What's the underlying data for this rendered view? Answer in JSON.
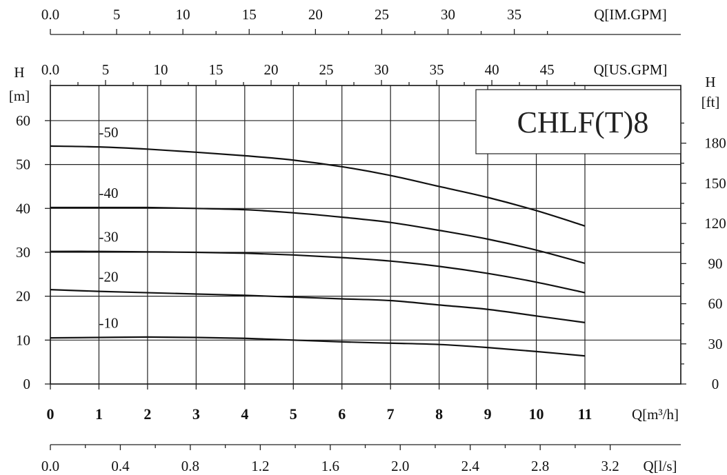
{
  "chart_data": {
    "type": "line",
    "title": "CHLF(T)8",
    "x": [
      0,
      1,
      2,
      3,
      4,
      5,
      6,
      7,
      8,
      9,
      10,
      11
    ],
    "xlabel": "Q[m³/h]",
    "xlim": [
      0,
      11
    ],
    "ylabel_left": "H [m]",
    "ylim": [
      0,
      68
    ],
    "left_ticks": [
      "0",
      "10",
      "20",
      "30",
      "40",
      "50",
      "60"
    ],
    "ylabel_right": "H [ft]",
    "right_ticks": [
      "0",
      "30",
      "60",
      "90",
      "120",
      "150",
      "180"
    ],
    "right_tick_values": [
      0,
      30,
      60,
      90,
      120,
      150,
      180
    ],
    "bottom_ticks": [
      "0",
      "1",
      "2",
      "3",
      "4",
      "5",
      "6",
      "7",
      "8",
      "9",
      "10",
      "11"
    ],
    "ls_axis": {
      "label": "Q[l/s]",
      "ticks": [
        "0.0",
        "0.4",
        "0.8",
        "1.2",
        "1.6",
        "2.0",
        "2.4",
        "2.8",
        "3.2"
      ],
      "tick_values": [
        0,
        0.4,
        0.8,
        1.2,
        1.6,
        2.0,
        2.4,
        2.8,
        3.2
      ]
    },
    "us_gpm_axis": {
      "label": "Q[US.GPM]",
      "ticks": [
        "0.0",
        "5",
        "10",
        "15",
        "20",
        "25",
        "30",
        "35",
        "40",
        "45"
      ],
      "tick_values": [
        0,
        5,
        10,
        15,
        20,
        25,
        30,
        35,
        40,
        45
      ]
    },
    "im_gpm_axis": {
      "label": "Q[IM.GPM]",
      "ticks": [
        "0.0",
        "5",
        "10",
        "15",
        "20",
        "25",
        "30",
        "35"
      ],
      "tick_values": [
        0,
        5,
        10,
        15,
        20,
        25,
        30,
        35
      ]
    },
    "grid": true,
    "series": [
      {
        "name": "-50",
        "values": [
          54.2,
          54.0,
          53.5,
          52.8,
          52.0,
          51.0,
          49.5,
          47.5,
          45.0,
          42.5,
          39.5,
          36.0
        ]
      },
      {
        "name": "-40",
        "values": [
          40.2,
          40.2,
          40.2,
          40.0,
          39.7,
          39.0,
          38.0,
          36.8,
          35.0,
          33.0,
          30.5,
          27.5
        ]
      },
      {
        "name": "-30",
        "values": [
          30.2,
          30.2,
          30.1,
          30.0,
          29.8,
          29.4,
          28.8,
          28.0,
          26.8,
          25.2,
          23.2,
          20.8
        ]
      },
      {
        "name": "-20",
        "values": [
          21.5,
          21.1,
          20.8,
          20.5,
          20.2,
          19.8,
          19.4,
          19.0,
          18.0,
          17.0,
          15.5,
          14.0
        ]
      },
      {
        "name": "-10",
        "values": [
          10.5,
          10.6,
          10.7,
          10.6,
          10.4,
          10.0,
          9.6,
          9.3,
          9.0,
          8.3,
          7.4,
          6.4
        ]
      }
    ]
  }
}
